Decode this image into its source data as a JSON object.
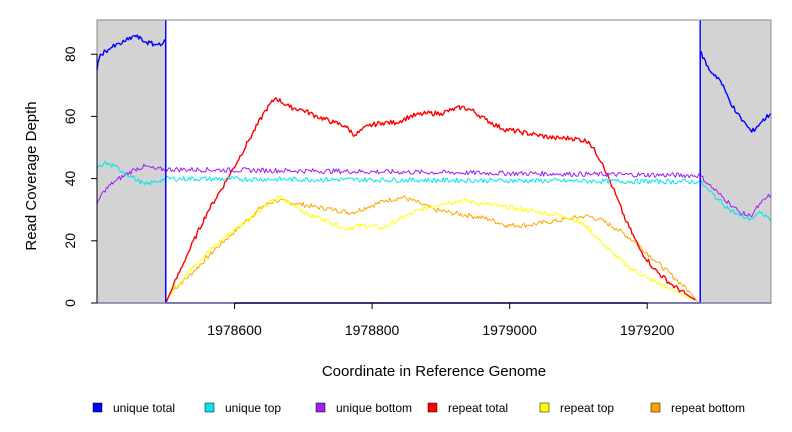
{
  "chart_data": {
    "type": "line",
    "xlabel": "Coordinate in Reference Genome",
    "ylabel": "Read Coverage Depth",
    "xlim": [
      1978400,
      1979380
    ],
    "ylim": [
      0,
      91
    ],
    "xticks": [
      1978600,
      1978800,
      1979000,
      1979200
    ],
    "yticks": [
      0,
      20,
      40,
      60,
      80
    ],
    "shaded_regions": [
      {
        "name": "left-flank",
        "from": 1978400,
        "to": 1978500,
        "color": "#d3d3d3"
      },
      {
        "name": "right-flank",
        "from": 1979277,
        "to": 1979380,
        "color": "#d3d3d3"
      }
    ],
    "repeat_boundaries": [
      1978500,
      1979277
    ],
    "series": [
      {
        "name": "unique total",
        "color": "#0000ff",
        "points": [
          [
            1978400,
            75
          ],
          [
            1978405,
            80
          ],
          [
            1978420,
            82
          ],
          [
            1978440,
            84
          ],
          [
            1978455,
            86
          ],
          [
            1978470,
            84
          ],
          [
            1978485,
            83
          ],
          [
            1978500,
            84
          ],
          [
            1978500,
            0
          ],
          [
            1979277,
            0
          ],
          [
            1979277,
            81
          ],
          [
            1979290,
            75
          ],
          [
            1979305,
            72
          ],
          [
            1979318,
            66
          ],
          [
            1979330,
            61
          ],
          [
            1979345,
            57
          ],
          [
            1979352,
            55
          ],
          [
            1979365,
            58
          ],
          [
            1979380,
            61
          ]
        ]
      },
      {
        "name": "unique top",
        "color": "#00e5ee",
        "points": [
          [
            1978400,
            43
          ],
          [
            1978410,
            45
          ],
          [
            1978425,
            44
          ],
          [
            1978440,
            42
          ],
          [
            1978455,
            40
          ],
          [
            1978470,
            38
          ],
          [
            1978485,
            39
          ],
          [
            1978500,
            40
          ],
          [
            1979277,
            39
          ],
          [
            1979290,
            36
          ],
          [
            1979305,
            33
          ],
          [
            1979320,
            30
          ],
          [
            1979335,
            28
          ],
          [
            1979350,
            27
          ],
          [
            1979365,
            29
          ],
          [
            1979380,
            27
          ]
        ]
      },
      {
        "name": "unique bottom",
        "color": "#a020f0",
        "points": [
          [
            1978400,
            32
          ],
          [
            1978410,
            36
          ],
          [
            1978425,
            39
          ],
          [
            1978440,
            41
          ],
          [
            1978455,
            43
          ],
          [
            1978470,
            44
          ],
          [
            1978485,
            43
          ],
          [
            1978500,
            43
          ],
          [
            1979277,
            41
          ],
          [
            1979290,
            38
          ],
          [
            1979305,
            35
          ],
          [
            1979320,
            32
          ],
          [
            1979335,
            29
          ],
          [
            1979350,
            28
          ],
          [
            1979365,
            32
          ],
          [
            1979380,
            35
          ]
        ]
      },
      {
        "name": "repeat total",
        "color": "#ff0000",
        "points": [
          [
            1978500,
            0
          ],
          [
            1978510,
            5
          ],
          [
            1978530,
            15
          ],
          [
            1978560,
            29
          ],
          [
            1978590,
            40
          ],
          [
            1978620,
            52
          ],
          [
            1978645,
            62
          ],
          [
            1978660,
            66
          ],
          [
            1978680,
            63
          ],
          [
            1978700,
            62
          ],
          [
            1978720,
            60
          ],
          [
            1978745,
            58
          ],
          [
            1978760,
            57
          ],
          [
            1978775,
            54
          ],
          [
            1978795,
            57
          ],
          [
            1978815,
            58
          ],
          [
            1978835,
            58
          ],
          [
            1978855,
            60
          ],
          [
            1978880,
            61
          ],
          [
            1978900,
            61
          ],
          [
            1978915,
            62
          ],
          [
            1978930,
            63
          ],
          [
            1978945,
            62
          ],
          [
            1978965,
            59
          ],
          [
            1978990,
            56
          ],
          [
            1979015,
            55
          ],
          [
            1979040,
            54
          ],
          [
            1979065,
            53
          ],
          [
            1979090,
            53
          ],
          [
            1979115,
            52
          ],
          [
            1979135,
            45
          ],
          [
            1979150,
            37
          ],
          [
            1979170,
            26
          ],
          [
            1979190,
            17
          ],
          [
            1979210,
            11
          ],
          [
            1979235,
            6
          ],
          [
            1979255,
            3
          ],
          [
            1979270,
            1
          ]
        ]
      },
      {
        "name": "repeat top",
        "color": "#ffff00",
        "points": [
          [
            1978500,
            0
          ],
          [
            1978510,
            4
          ],
          [
            1978540,
            12
          ],
          [
            1978580,
            20
          ],
          [
            1978620,
            27
          ],
          [
            1978650,
            32
          ],
          [
            1978665,
            34
          ],
          [
            1978690,
            31
          ],
          [
            1978710,
            28
          ],
          [
            1978730,
            27
          ],
          [
            1978760,
            24
          ],
          [
            1978790,
            25
          ],
          [
            1978815,
            24
          ],
          [
            1978840,
            27
          ],
          [
            1978870,
            30
          ],
          [
            1978900,
            32
          ],
          [
            1978930,
            33
          ],
          [
            1978960,
            32
          ],
          [
            1978990,
            31
          ],
          [
            1979020,
            30
          ],
          [
            1979050,
            29
          ],
          [
            1979080,
            28
          ],
          [
            1979110,
            25
          ],
          [
            1979140,
            18
          ],
          [
            1979170,
            12
          ],
          [
            1979200,
            8
          ],
          [
            1979230,
            5
          ],
          [
            1979255,
            2
          ],
          [
            1979270,
            1
          ]
        ]
      },
      {
        "name": "repeat bottom",
        "color": "#ffa500",
        "points": [
          [
            1978500,
            0
          ],
          [
            1978510,
            4
          ],
          [
            1978540,
            10
          ],
          [
            1978575,
            18
          ],
          [
            1978610,
            25
          ],
          [
            1978640,
            31
          ],
          [
            1978660,
            33
          ],
          [
            1978690,
            32
          ],
          [
            1978715,
            31
          ],
          [
            1978745,
            30
          ],
          [
            1978770,
            29
          ],
          [
            1978795,
            31
          ],
          [
            1978820,
            33
          ],
          [
            1978845,
            34
          ],
          [
            1978870,
            32
          ],
          [
            1978890,
            30
          ],
          [
            1978915,
            29
          ],
          [
            1978945,
            28
          ],
          [
            1978970,
            27
          ],
          [
            1978995,
            25
          ],
          [
            1979025,
            25
          ],
          [
            1979055,
            26
          ],
          [
            1979085,
            27
          ],
          [
            1979110,
            28
          ],
          [
            1979130,
            27
          ],
          [
            1979155,
            24
          ],
          [
            1979180,
            20
          ],
          [
            1979210,
            14
          ],
          [
            1979240,
            8
          ],
          [
            1979260,
            4
          ],
          [
            1979275,
            0
          ]
        ]
      }
    ],
    "legend": [
      {
        "label": "unique total",
        "color": "#0000ff"
      },
      {
        "label": "unique top",
        "color": "#00e5ee"
      },
      {
        "label": "unique bottom",
        "color": "#a020f0"
      },
      {
        "label": "repeat total",
        "color": "#ff0000"
      },
      {
        "label": "repeat top",
        "color": "#ffff00"
      },
      {
        "label": "repeat bottom",
        "color": "#ffa500"
      }
    ],
    "legend_position": "bottom"
  }
}
